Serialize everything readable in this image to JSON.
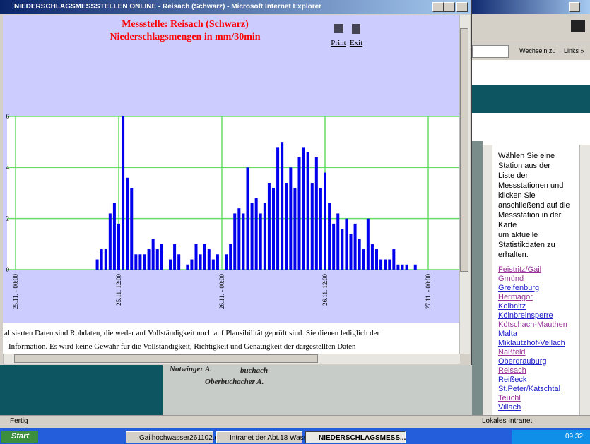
{
  "popup": {
    "title": "NIEDERSCHLAGSMESSSTELLEN ONLINE - Reisach (Schwarz) - Microsoft Internet Explorer",
    "print": "Print",
    "exit": "Exit",
    "disclaimer": [
      "alisierten Daten sind Rohdaten, die weder auf Vollständigkeit noch auf Plausibilität geprüft sind. Sie dienen lediglich der",
      "Information. Es wird keine Gewähr für die Vollständigkeit, Richtigkeit und Genauigkeit der dargestellten Daten"
    ]
  },
  "chart_data": {
    "type": "bar",
    "title": "Messstelle: Reisach (Schwarz)",
    "subtitle": "Niederschlagsmengen in mm/30min",
    "categories": [
      "25.11. - 00:00",
      null,
      null,
      null,
      null,
      null,
      null,
      null,
      null,
      null,
      null,
      null,
      null,
      null,
      null,
      null,
      null,
      null,
      null,
      null,
      null,
      null,
      null,
      null,
      "25.11. 12:00",
      null,
      null,
      null,
      null,
      null,
      null,
      null,
      null,
      null,
      null,
      null,
      null,
      null,
      null,
      null,
      null,
      null,
      null,
      null,
      null,
      null,
      null,
      null,
      "26.11. - 00:00",
      null,
      null,
      null,
      null,
      null,
      null,
      null,
      null,
      null,
      null,
      null,
      null,
      null,
      null,
      null,
      null,
      null,
      null,
      null,
      null,
      null,
      null,
      null,
      "26.11. 12:00",
      null,
      null,
      null,
      null,
      null,
      null,
      null,
      null,
      null,
      null,
      null,
      null,
      null,
      null,
      null,
      null,
      null,
      null,
      null,
      null,
      null,
      null,
      null,
      "27.11. - 00:00"
    ],
    "values": [
      0,
      0,
      0,
      0,
      0,
      0,
      0,
      0,
      0,
      0,
      0,
      0,
      0,
      0,
      0,
      0,
      0,
      0,
      0,
      0.4,
      0.8,
      0.8,
      2.2,
      2.6,
      1.8,
      6.0,
      3.6,
      3.2,
      0.6,
      0.6,
      0.6,
      0.8,
      1.2,
      0.8,
      1.0,
      0,
      0.4,
      1.0,
      0.6,
      0,
      0.2,
      0.4,
      1.0,
      0.6,
      1.0,
      0.8,
      0.4,
      0.6,
      0,
      0.6,
      1.0,
      2.2,
      2.4,
      2.2,
      4.0,
      2.6,
      2.8,
      2.2,
      2.6,
      3.4,
      3.2,
      4.8,
      5.0,
      3.4,
      4.0,
      3.2,
      4.4,
      4.8,
      4.6,
      3.4,
      4.4,
      3.2,
      3.8,
      2.6,
      1.8,
      2.2,
      1.6,
      2.0,
      1.4,
      1.8,
      1.2,
      0.8,
      2.0,
      1.0,
      0.8,
      0.4,
      0.4,
      0.4,
      0.8,
      0.2,
      0.2,
      0.2,
      0,
      0.2,
      0,
      0,
      0
    ],
    "color": "#0000ee",
    "grid_color": "#66dd66",
    "ylim": [
      0,
      6
    ],
    "yticks": [
      0,
      2,
      4,
      6
    ],
    "grid": true
  },
  "main_window": {
    "address_go": "Wechseln zu",
    "links": "Links »",
    "instructions": [
      "Wählen Sie eine",
      "Station aus der",
      "Liste der",
      "Messstationen und",
      "klicken Sie",
      "anschließend auf die",
      "Messstation in der",
      "Karte",
      "um aktuelle",
      "Statistikdaten zu",
      "erhalten."
    ],
    "stations": [
      "Feistritz/Gail",
      "Gmünd",
      "Greifenburg",
      "Hermagor",
      "Kolbnitz",
      "Kölnbreinsperre",
      "Kötschach-Mauthen",
      "Malta",
      "Miklautzhof-Vellach",
      "Naßfeld",
      "Oberdrauburg",
      "Reisach",
      "Reißeck",
      "St.Peter/Katschtal",
      "Teuchl",
      "Villach"
    ],
    "map_labels": [
      "Notwinger A.",
      "buchach",
      "Oberbuchacher A."
    ],
    "status": "Fertig",
    "zone": "Lokales Intranet"
  },
  "taskbar": {
    "start": "Start",
    "tasks": [
      "Gailhochwasser261102.d...",
      "Intranet der Abt.18 Wass...",
      "NIEDERSCHLAGSMESS..."
    ],
    "clock": "09:32"
  }
}
